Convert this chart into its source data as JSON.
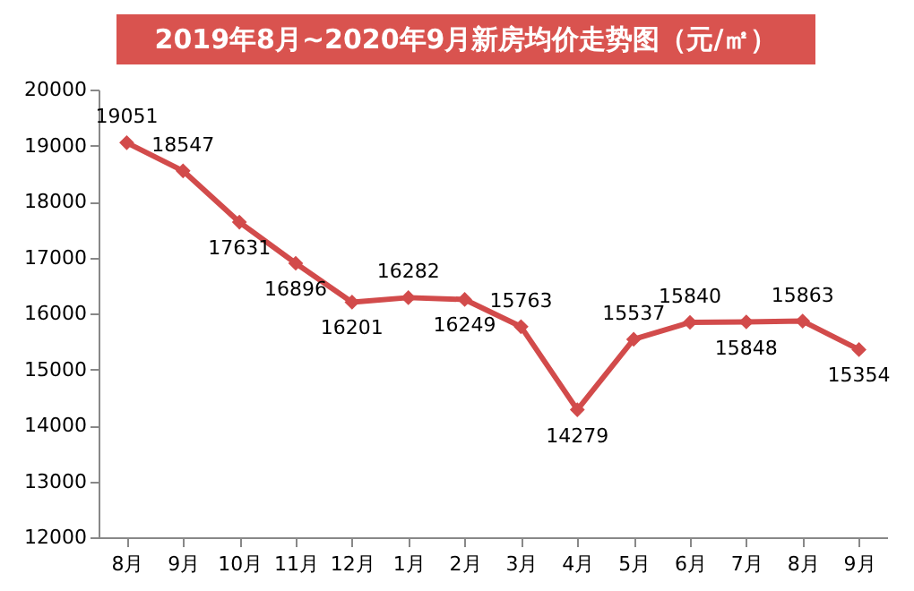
{
  "chart_data": {
    "type": "line",
    "title": "2019年8月~2020年9月新房均价走势图（元/㎡）",
    "categories": [
      "8月",
      "9月",
      "10月",
      "11月",
      "12月",
      "1月",
      "2月",
      "3月",
      "4月",
      "5月",
      "6月",
      "7月",
      "8月",
      "9月"
    ],
    "series": [
      {
        "color": "#d24b4b",
        "values": [
          19051,
          18547,
          17631,
          16896,
          16201,
          16282,
          16249,
          15763,
          14279,
          15537,
          15840,
          15848,
          15863,
          15354
        ]
      }
    ],
    "ylim": [
      12000,
      20000
    ],
    "yticks": [
      12000,
      13000,
      14000,
      15000,
      16000,
      17000,
      18000,
      19000,
      20000
    ],
    "grid": false,
    "marker": "diamond",
    "line_style": "solid",
    "data_labels": true
  }
}
